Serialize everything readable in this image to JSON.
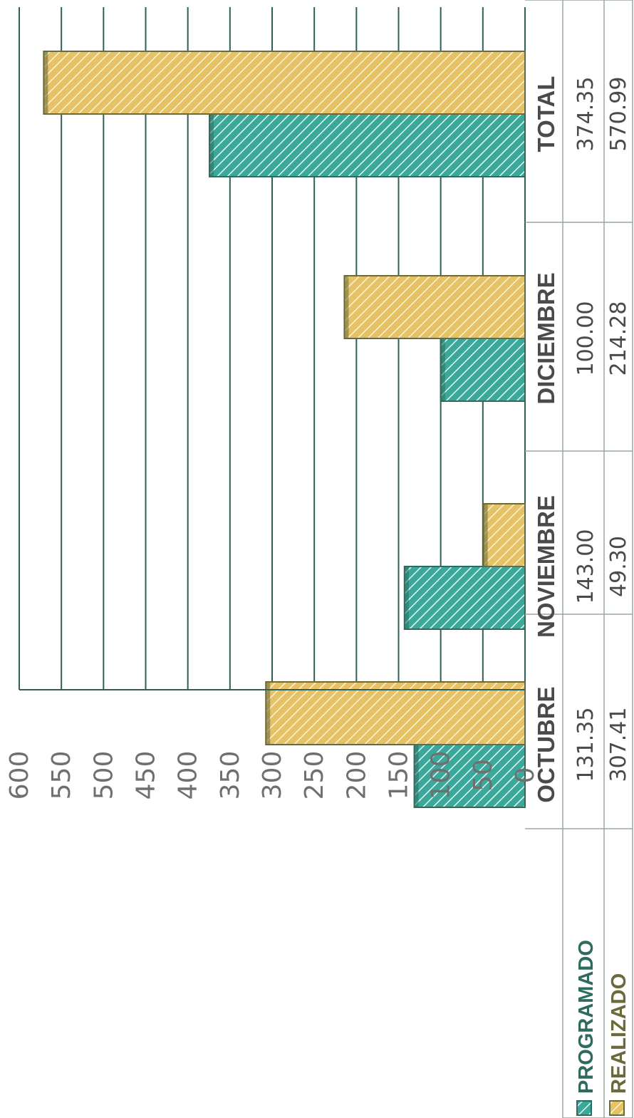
{
  "chart_data": {
    "type": "bar",
    "orientation": "rotated-90",
    "categories": [
      "OCTUBRE",
      "NOVIEMBRE",
      "DICIEMBRE",
      "TOTAL"
    ],
    "series": [
      {
        "name": "PROGRAMADO",
        "values": [
          131.35,
          143.0,
          100.0,
          374.35
        ],
        "labels": [
          "131.35",
          "143.00",
          "100.00",
          "374.35"
        ],
        "color": "#3aa89a",
        "stroke": "#2e6b5d"
      },
      {
        "name": "REALIZADO",
        "values": [
          307.41,
          49.3,
          214.28,
          570.99
        ],
        "labels": [
          "307.41",
          "49.30",
          "214.28",
          "570.99"
        ],
        "color": "#e4c265",
        "stroke": "#6b6a3a"
      }
    ],
    "ylim": [
      0,
      600
    ],
    "ticks": [
      "0",
      "50",
      "100",
      "150",
      "200",
      "250",
      "300",
      "350",
      "400",
      "450",
      "500",
      "550",
      "600"
    ],
    "grid": true,
    "data_table": true,
    "hatched": true
  }
}
